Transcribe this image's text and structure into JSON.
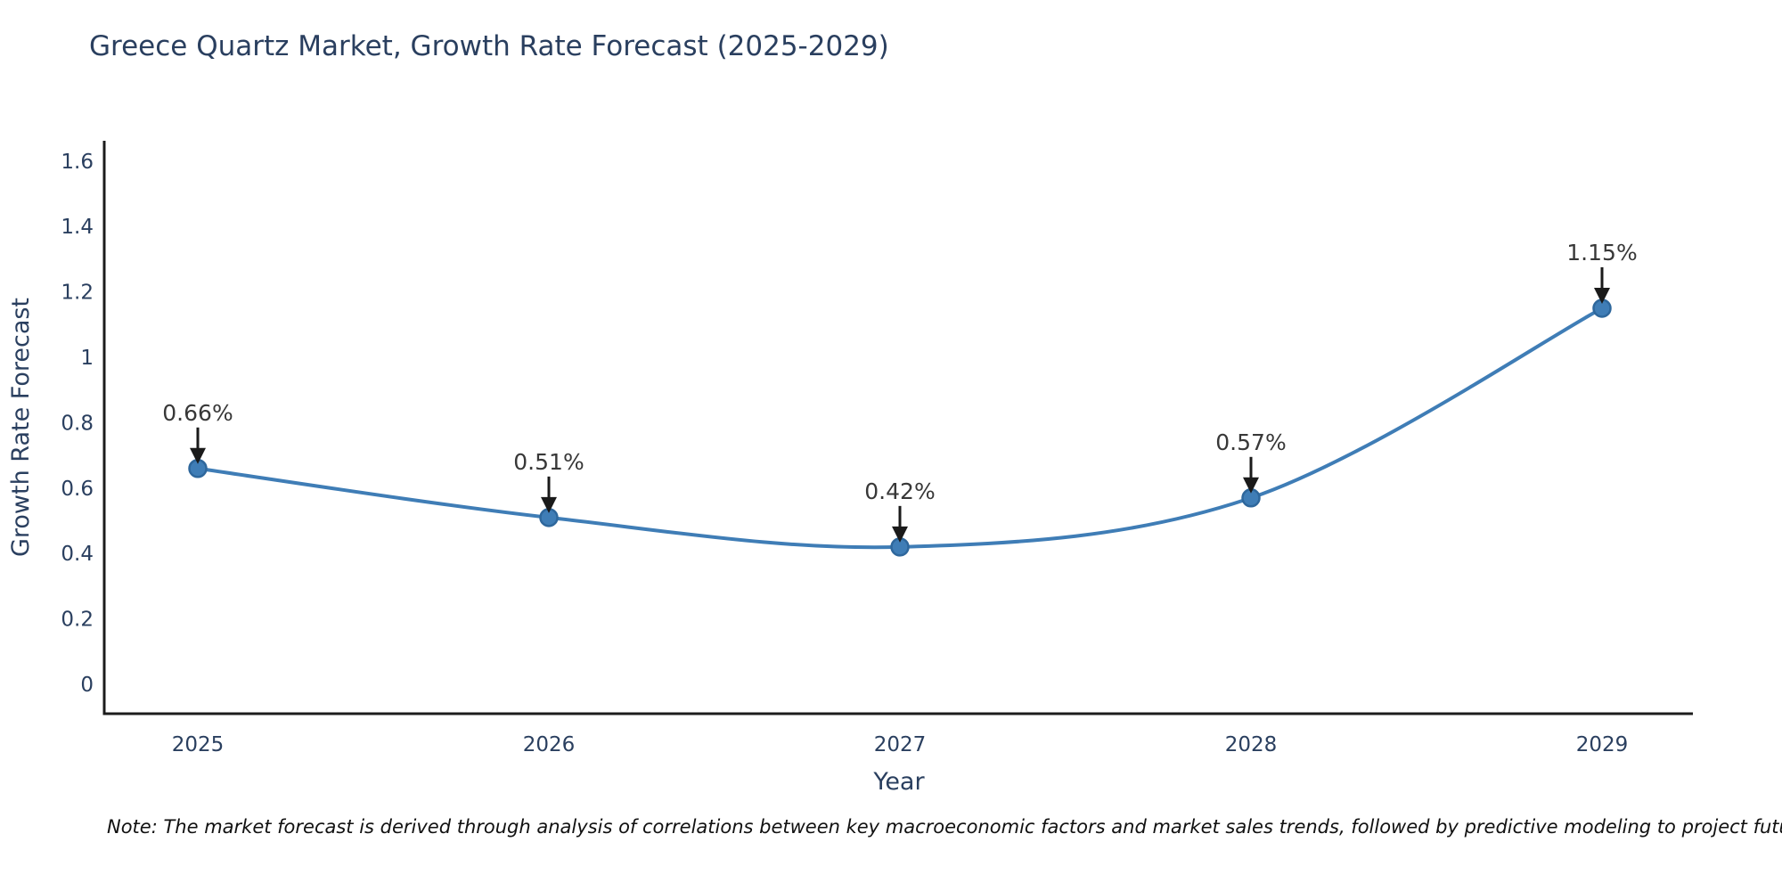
{
  "note": "Note: The market forecast is derived through analysis of correlations between key macroeconomic factors and market sales trends, followed by predictive modeling to project future sales",
  "chart_data": {
    "type": "line",
    "title": "Greece Quartz Market, Growth Rate Forecast (2025-2029)",
    "xlabel": "Year",
    "ylabel": "Growth Rate Forecast",
    "categories": [
      "2025",
      "2026",
      "2027",
      "2028",
      "2029"
    ],
    "values": [
      0.66,
      0.51,
      0.42,
      0.57,
      1.15
    ],
    "point_labels": [
      "0.66%",
      "0.51%",
      "0.42%",
      "0.57%",
      "1.15%"
    ],
    "series_name": "Growth Rate Forecast",
    "ylim": [
      0,
      1.6
    ],
    "yticks": [
      0,
      0.2,
      0.4,
      0.6,
      0.8,
      1,
      1.2,
      1.4,
      1.6
    ],
    "ytick_labels": [
      "0",
      "0.2",
      "0.4",
      "0.6",
      "0.8",
      "1",
      "1.2",
      "1.4",
      "1.6"
    ],
    "grid": false,
    "legend_position": "none",
    "curve": "spline",
    "markers": true,
    "annotations_arrows": true,
    "colors": {
      "line": "#3f7db6",
      "marker_fill": "#3f7db6",
      "marker_edge": "#2e679c",
      "axis_line": "#1c1c1c",
      "tick_text": "#2a3f5f",
      "axis_title_text": "#2a3f5f",
      "title_text": "#2a3f5f",
      "annotation_text": "#383838",
      "arrow": "#1a1a1a",
      "background": "#ffffff"
    }
  }
}
